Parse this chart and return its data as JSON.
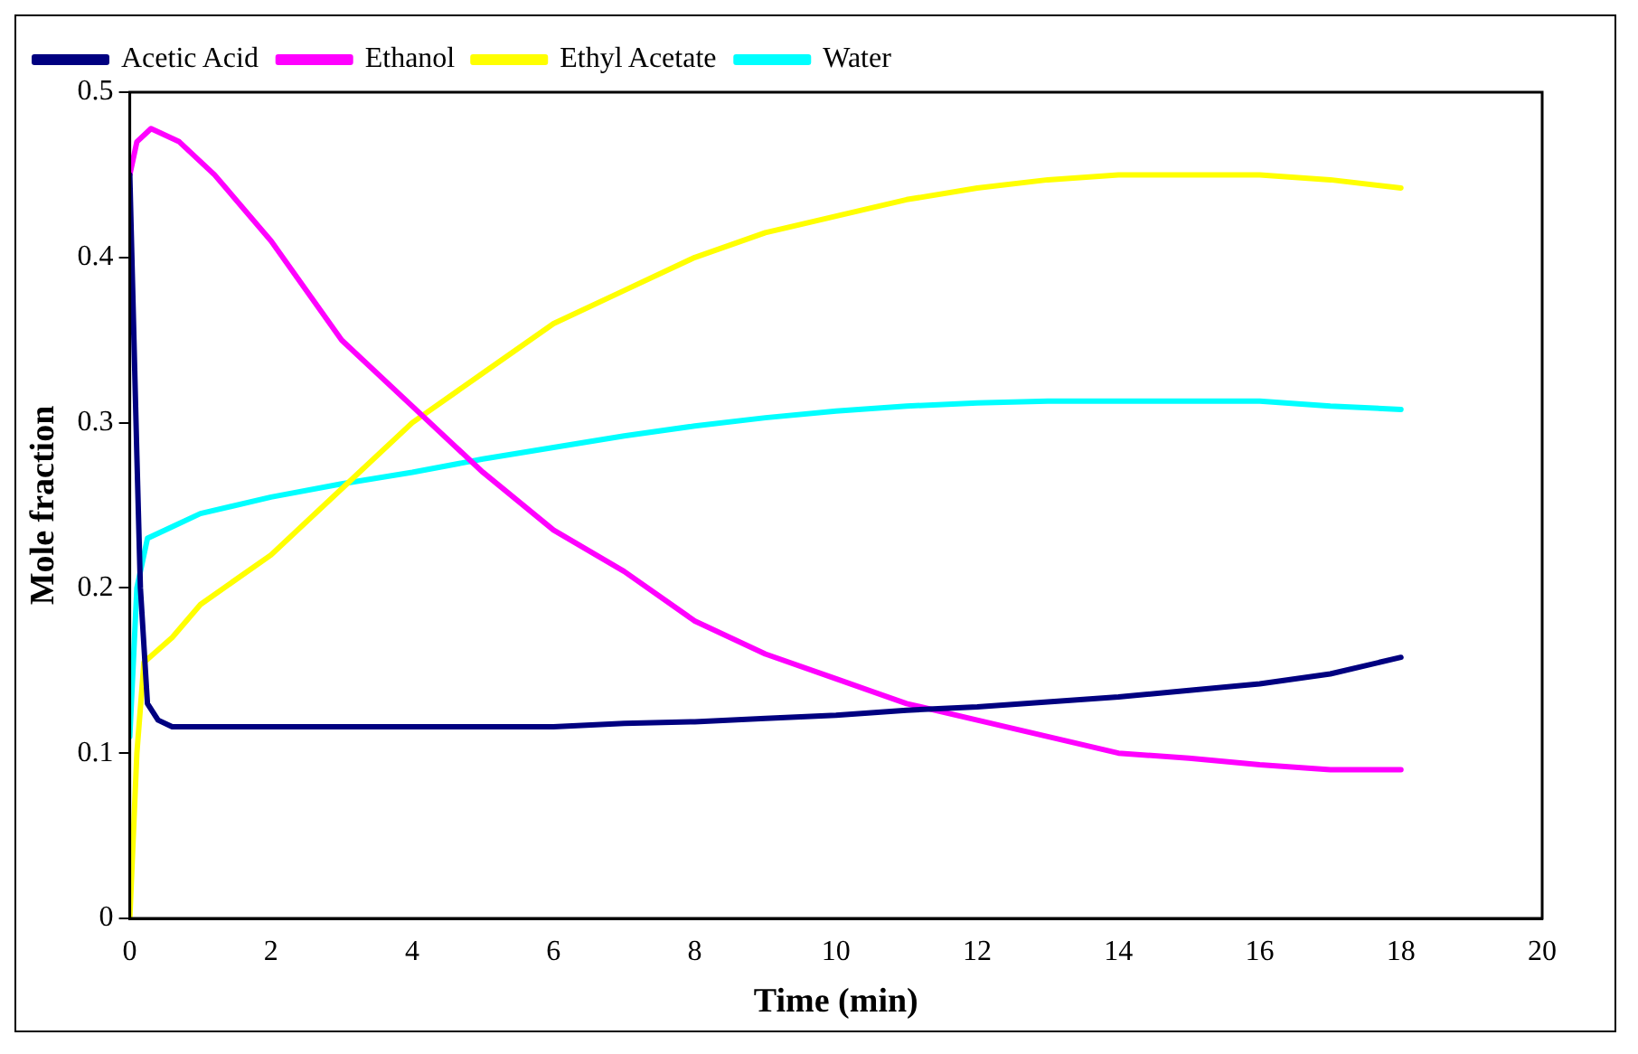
{
  "chart_data": {
    "type": "line",
    "xlabel": "Time (min)",
    "ylabel": "Mole fraction",
    "xlim": [
      0,
      20
    ],
    "xticks": [
      0,
      2,
      4,
      6,
      8,
      10,
      12,
      14,
      16,
      18,
      20
    ],
    "ylim": [
      0,
      0.5
    ],
    "yticks": [
      0,
      0.1,
      0.2,
      0.3,
      0.4,
      0.5
    ],
    "grid": false,
    "legend": "top left",
    "marker": "none",
    "line_style": "solid",
    "series": [
      {
        "name": "Acetic Acid",
        "color": "#000080",
        "x": [
          0,
          0.1,
          0.15,
          0.25,
          0.4,
          0.6,
          1,
          2,
          4,
          6,
          7,
          8,
          9,
          10,
          11,
          12,
          13,
          14,
          15,
          16,
          17,
          18
        ],
        "values": [
          0.45,
          0.28,
          0.2,
          0.13,
          0.12,
          0.116,
          0.116,
          0.116,
          0.116,
          0.116,
          0.118,
          0.119,
          0.121,
          0.123,
          0.126,
          0.128,
          0.131,
          0.134,
          0.138,
          0.142,
          0.148,
          0.158
        ]
      },
      {
        "name": "Ethanol",
        "color": "#ff00ff",
        "x": [
          0,
          0.1,
          0.3,
          0.7,
          1.2,
          2,
          3,
          4,
          5,
          6,
          7,
          8,
          9,
          10,
          11,
          12,
          13,
          14,
          15,
          16,
          17,
          18
        ],
        "values": [
          0.45,
          0.47,
          0.478,
          0.47,
          0.45,
          0.41,
          0.35,
          0.31,
          0.27,
          0.235,
          0.21,
          0.18,
          0.16,
          0.145,
          0.13,
          0.12,
          0.11,
          0.1,
          0.097,
          0.093,
          0.09,
          0.09
        ]
      },
      {
        "name": "Ethyl Acetate",
        "color": "#ffff00",
        "x": [
          0,
          0.1,
          0.2,
          0.6,
          1,
          2,
          3,
          4,
          5,
          6,
          7,
          8,
          9,
          10,
          11,
          12,
          13,
          14,
          15,
          16,
          17,
          18
        ],
        "values": [
          0,
          0.1,
          0.155,
          0.17,
          0.19,
          0.22,
          0.26,
          0.3,
          0.33,
          0.36,
          0.38,
          0.4,
          0.415,
          0.425,
          0.435,
          0.442,
          0.447,
          0.45,
          0.45,
          0.45,
          0.447,
          0.442
        ]
      },
      {
        "name": "Water",
        "color": "#00ffff",
        "x": [
          0,
          0.1,
          0.25,
          0.6,
          1,
          2,
          3,
          4,
          5,
          6,
          7,
          8,
          9,
          10,
          11,
          12,
          13,
          14,
          15,
          16,
          17,
          18
        ],
        "values": [
          0.11,
          0.2,
          0.23,
          0.237,
          0.245,
          0.255,
          0.263,
          0.27,
          0.278,
          0.285,
          0.292,
          0.298,
          0.303,
          0.307,
          0.31,
          0.312,
          0.313,
          0.313,
          0.313,
          0.313,
          0.31,
          0.308
        ]
      }
    ]
  }
}
